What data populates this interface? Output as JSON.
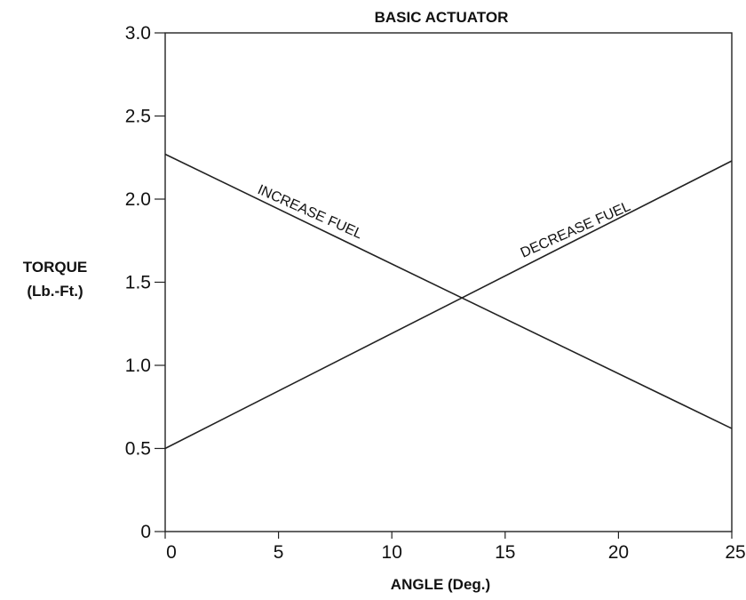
{
  "chart_data": {
    "type": "line",
    "title": "BASIC ACTUATOR",
    "xlabel": "ANGLE (Deg.)",
    "ylabel": [
      "TORQUE",
      "(Lb.-Ft.)"
    ],
    "xlim": [
      0,
      25
    ],
    "ylim": [
      0,
      3.0
    ],
    "xticks": [
      {
        "value": 0,
        "label": "0"
      },
      {
        "value": 5,
        "label": "5"
      },
      {
        "value": 10,
        "label": "10"
      },
      {
        "value": 15,
        "label": "15"
      },
      {
        "value": 20,
        "label": "20"
      },
      {
        "value": 25,
        "label": "25"
      }
    ],
    "yticks": [
      {
        "value": 0,
        "label": "0"
      },
      {
        "value": 0.5,
        "label": "0.5"
      },
      {
        "value": 1.0,
        "label": "1.0"
      },
      {
        "value": 1.5,
        "label": "1.5"
      },
      {
        "value": 2.0,
        "label": "2.0"
      },
      {
        "value": 2.5,
        "label": "2.5"
      },
      {
        "value": 3.0,
        "label": "3.0"
      }
    ],
    "grid": false,
    "series": [
      {
        "name": "INCREASE FUEL",
        "x": [
          0,
          25
        ],
        "y": [
          2.27,
          0.62
        ]
      },
      {
        "name": "DECREASE FUEL",
        "x": [
          0,
          25
        ],
        "y": [
          0.5,
          2.23
        ]
      }
    ]
  }
}
